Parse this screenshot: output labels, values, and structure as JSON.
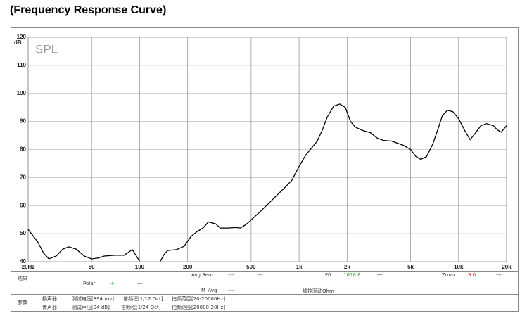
{
  "chart_data": {
    "type": "line",
    "title": "(Frequency Response Curve)",
    "annotation": "SPL",
    "ylabel": "dB",
    "log_x": true,
    "grid": true,
    "x": [
      20,
      23,
      25,
      27,
      30,
      33,
      36,
      40,
      45,
      50,
      55,
      60,
      70,
      80,
      90,
      100,
      110,
      135,
      142,
      150,
      170,
      190,
      210,
      230,
      250,
      270,
      300,
      320,
      360,
      400,
      430,
      470,
      550,
      650,
      750,
      800,
      900,
      1000,
      1100,
      1300,
      1400,
      1500,
      1650,
      1800,
      1950,
      2100,
      2250,
      2500,
      2800,
      3100,
      3400,
      3800,
      4500,
      5000,
      5400,
      5800,
      6300,
      6900,
      7400,
      7900,
      8500,
      9200,
      10000,
      11000,
      11800,
      12800,
      13800,
      15000,
      16500,
      17500,
      18500,
      20000
    ],
    "series": [
      {
        "color": "#000000",
        "values": [
          51.5,
          47,
          43,
          41,
          42,
          44.5,
          45.3,
          44.5,
          42,
          41,
          41.3,
          42,
          42.3,
          42.3,
          44.3,
          40.2,
          null,
          40.2,
          42.5,
          44,
          44.3,
          45.5,
          49,
          50.8,
          52,
          54.2,
          53.5,
          52,
          52,
          52.2,
          52,
          53.5,
          57,
          61,
          64.5,
          66,
          69,
          74,
          78,
          83,
          87,
          91.5,
          95.5,
          96.2,
          95,
          90,
          88,
          86.8,
          86,
          84,
          83.2,
          83,
          81.5,
          80,
          77.5,
          76.5,
          77.5,
          82,
          87,
          92,
          94,
          93.5,
          91,
          86.5,
          83.5,
          86,
          88.5,
          89.2,
          88.5,
          87,
          86.2,
          88.5
        ]
      }
    ],
    "xlim": [
      20,
      20000
    ],
    "xticks": [
      {
        "value": 20,
        "label": "20Hz"
      },
      50,
      100,
      200,
      500,
      {
        "value": 1000,
        "label": "1k"
      },
      {
        "value": 2000,
        "label": "2k"
      },
      {
        "value": 5000,
        "label": "5k"
      },
      {
        "value": 10000,
        "label": "10k"
      },
      {
        "value": 20000,
        "label": "20k"
      }
    ],
    "ylim": [
      40,
      120
    ],
    "yticks": [
      40,
      50,
      60,
      70,
      80,
      90,
      100,
      110,
      120
    ]
  },
  "info": {
    "result_label": "结果",
    "avg_sen": "Avg.Sen-",
    "avg_sen_v1": "---",
    "avg_sen_v2": "---",
    "f0": "F0.",
    "f0_value": "1616.8",
    "f0_v2": "---",
    "zmax": "Zmax",
    "zmax_value": "9.0",
    "zmax_v2": "---",
    "polar": "Polar:",
    "polar_value": "+",
    "polar_v2": "---",
    "m_avg": "M_Avg",
    "m_avg_v": "---",
    "ohm": "线控驱动Ohm",
    "param_label": "参数",
    "row1": [
      "扬声器:",
      "测试电压[894 mv]",
      "倍频程[1/12 Oct]",
      "扫频范围[20-20000Hz]"
    ],
    "row2": [
      "传声器:",
      "测试声压[94 dB]",
      "倍频程[1/24 Oct]",
      "扫频范围[20000-20Hz]"
    ]
  }
}
